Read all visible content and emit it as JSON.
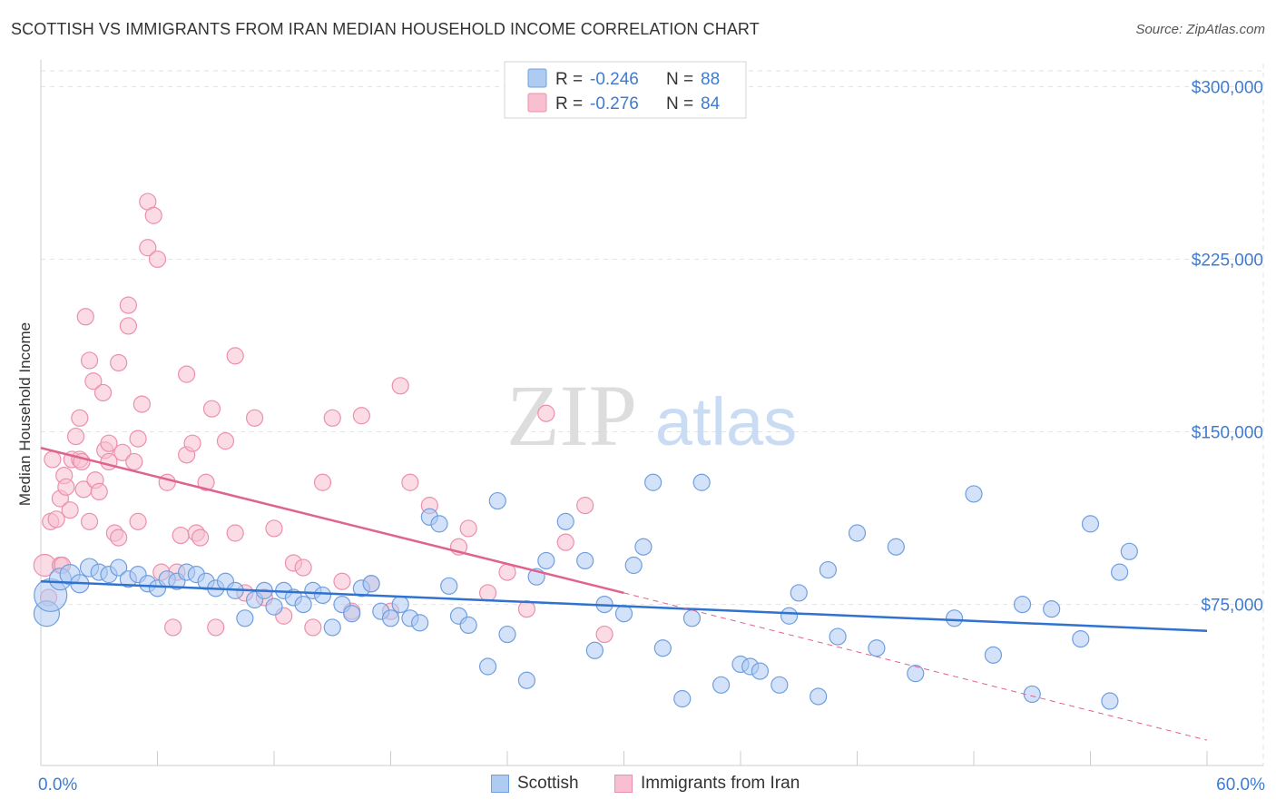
{
  "title": "SCOTTISH VS IMMIGRANTS FROM IRAN MEDIAN HOUSEHOLD INCOME CORRELATION CHART",
  "source": "Source: ZipAtlas.com",
  "watermark": {
    "zip": "ZIP",
    "atlas": "atlas"
  },
  "colors": {
    "blue_fill": "#aecbf2",
    "blue_stroke": "#6f9fe0",
    "blue_line": "#2f72d0",
    "pink_fill": "#f7bfd0",
    "pink_stroke": "#ec8fae",
    "pink_line": "#e0628f",
    "value_text": "#3f7bd0",
    "grid": "#e2e2e2"
  },
  "legend_top": [
    {
      "r_label": "R =",
      "r_value": "-0.246",
      "n_label": "N =",
      "n_value": "88"
    },
    {
      "r_label": "R =",
      "r_value": "-0.276",
      "n_label": "N =",
      "n_value": "84"
    }
  ],
  "legend_bottom": [
    "Scottish",
    "Immigrants from Iran"
  ],
  "chart_data": {
    "type": "scatter",
    "title": "SCOTTISH VS IMMIGRANTS FROM IRAN MEDIAN HOUSEHOLD INCOME CORRELATION CHART",
    "xlabel": "",
    "ylabel": "Median Household Income",
    "xlim": [
      0,
      60
    ],
    "ylim": [
      5000,
      310000
    ],
    "x_tick_labels": [
      "0.0%",
      "60.0%"
    ],
    "y_ticks": [
      75000,
      150000,
      225000,
      300000
    ],
    "y_tick_labels": [
      "$75,000",
      "$150,000",
      "$225,000",
      "$300,000"
    ],
    "grid": true,
    "legend_position": "top-center",
    "series": [
      {
        "name": "Scottish",
        "trend": {
          "x": [
            0,
            60
          ],
          "y": [
            85000,
            63500
          ]
        },
        "x": [
          0.3,
          0.5,
          1.0,
          1.5,
          2.0,
          2.5,
          3.0,
          3.5,
          4.0,
          4.5,
          5.0,
          5.5,
          6.0,
          6.5,
          7.0,
          7.5,
          8.0,
          8.5,
          9.0,
          9.5,
          10.0,
          10.5,
          11.0,
          11.5,
          12.0,
          12.5,
          13.0,
          13.5,
          14.0,
          14.5,
          15.0,
          15.5,
          16.0,
          16.5,
          17.0,
          17.5,
          18.0,
          18.5,
          19.0,
          19.5,
          20.0,
          20.5,
          21.0,
          21.5,
          22.0,
          23.0,
          23.5,
          24.0,
          25.0,
          25.5,
          26.0,
          27.0,
          28.0,
          28.5,
          29.0,
          30.0,
          30.5,
          31.0,
          31.5,
          32.0,
          33.0,
          33.5,
          34.0,
          35.0,
          36.0,
          36.5,
          37.0,
          38.0,
          38.5,
          39.0,
          40.0,
          40.5,
          41.0,
          42.0,
          43.0,
          44.0,
          45.0,
          47.0,
          48.0,
          49.0,
          50.5,
          51.0,
          52.0,
          53.5,
          54.0,
          55.0,
          56.0,
          55.5
        ],
        "y": [
          71000,
          79000,
          86000,
          88000,
          84000,
          91000,
          89000,
          88000,
          91000,
          86000,
          88000,
          84000,
          82000,
          86000,
          85000,
          89000,
          88000,
          85000,
          82000,
          85000,
          81000,
          69000,
          77000,
          81000,
          74000,
          81000,
          78000,
          75000,
          81000,
          79000,
          65000,
          75000,
          71000,
          82000,
          84000,
          72000,
          69000,
          75000,
          69000,
          67000,
          113000,
          110000,
          83000,
          70000,
          66000,
          48000,
          120000,
          62000,
          42000,
          87000,
          94000,
          111000,
          94000,
          55000,
          75000,
          71000,
          92000,
          100000,
          128000,
          56000,
          34000,
          69000,
          128000,
          40000,
          49000,
          48000,
          46000,
          40000,
          70000,
          80000,
          35000,
          90000,
          61000,
          106000,
          56000,
          100000,
          45000,
          69000,
          123000,
          53000,
          75000,
          36000,
          73000,
          60000,
          110000,
          33000,
          98000,
          89000
        ],
        "sizes": [
          14,
          18,
          12,
          11,
          10,
          10,
          9,
          9,
          9,
          9,
          9,
          9,
          9,
          9,
          9,
          9,
          9,
          9,
          9,
          9,
          9,
          9,
          9,
          9,
          9,
          9,
          9,
          9,
          9,
          9,
          9,
          9,
          9,
          9,
          9,
          9,
          9,
          9,
          9,
          9,
          9,
          9,
          9,
          9,
          9,
          9,
          9,
          9,
          9,
          9,
          9,
          9,
          9,
          9,
          9,
          9,
          9,
          9,
          9,
          9,
          9,
          9,
          9,
          9,
          9,
          9,
          9,
          9,
          9,
          9,
          9,
          9,
          9,
          9,
          9,
          9,
          9,
          9,
          9,
          9,
          9,
          9,
          9,
          9,
          9,
          9,
          9,
          9
        ]
      },
      {
        "name": "Immigrants from Iran",
        "trend": {
          "x": [
            0,
            30
          ],
          "y": [
            143000,
            80000
          ]
        },
        "trend_extension": {
          "x": [
            30,
            60
          ],
          "y": [
            80000,
            16000
          ]
        },
        "x": [
          0.2,
          0.4,
          0.5,
          0.6,
          0.8,
          1.0,
          1.0,
          1.1,
          1.2,
          1.3,
          1.5,
          1.6,
          1.8,
          2.0,
          2.0,
          2.1,
          2.2,
          2.3,
          2.5,
          2.5,
          2.7,
          2.8,
          3.0,
          3.2,
          3.3,
          3.5,
          3.5,
          3.8,
          4.0,
          4.0,
          4.2,
          4.5,
          4.5,
          4.8,
          5.0,
          5.0,
          5.2,
          5.5,
          5.5,
          5.8,
          6.0,
          6.2,
          6.5,
          6.8,
          7.0,
          7.2,
          7.5,
          7.5,
          7.8,
          8.0,
          8.2,
          8.5,
          8.8,
          9.0,
          9.5,
          10.0,
          10.0,
          10.5,
          11.0,
          11.5,
          12.0,
          12.5,
          13.0,
          13.5,
          14.0,
          14.5,
          15.0,
          15.5,
          16.0,
          16.5,
          17.0,
          18.0,
          18.5,
          19.0,
          20.0,
          21.5,
          22.0,
          23.0,
          24.0,
          25.0,
          26.0,
          27.0,
          28.0,
          29.0
        ],
        "y": [
          92000,
          78000,
          111000,
          138000,
          112000,
          121000,
          92000,
          92000,
          131000,
          126000,
          116000,
          138000,
          148000,
          156000,
          138000,
          137000,
          125000,
          200000,
          111000,
          181000,
          172000,
          129000,
          124000,
          167000,
          142000,
          137000,
          145000,
          106000,
          180000,
          104000,
          141000,
          205000,
          196000,
          137000,
          147000,
          111000,
          162000,
          250000,
          230000,
          244000,
          225000,
          89000,
          128000,
          65000,
          89000,
          105000,
          140000,
          175000,
          145000,
          106000,
          104000,
          128000,
          160000,
          65000,
          146000,
          106000,
          183000,
          80000,
          156000,
          78000,
          108000,
          70000,
          93000,
          91000,
          65000,
          128000,
          156000,
          85000,
          72000,
          157000,
          84000,
          72000,
          170000,
          128000,
          118000,
          100000,
          108000,
          80000,
          89000,
          73000,
          158000,
          102000,
          118000,
          62000
        ],
        "sizes": [
          12,
          9,
          9,
          9,
          9,
          9,
          9,
          9,
          9,
          9,
          9,
          9,
          9,
          9,
          9,
          9,
          9,
          9,
          9,
          9,
          9,
          9,
          9,
          9,
          9,
          9,
          9,
          9,
          9,
          9,
          9,
          9,
          9,
          9,
          9,
          9,
          9,
          9,
          9,
          9,
          9,
          9,
          9,
          9,
          9,
          9,
          9,
          9,
          9,
          9,
          9,
          9,
          9,
          9,
          9,
          9,
          9,
          9,
          9,
          9,
          9,
          9,
          9,
          9,
          9,
          9,
          9,
          9,
          9,
          9,
          9,
          9,
          9,
          9,
          9,
          9,
          9,
          9,
          9,
          9,
          9,
          9,
          9,
          9
        ]
      }
    ]
  }
}
